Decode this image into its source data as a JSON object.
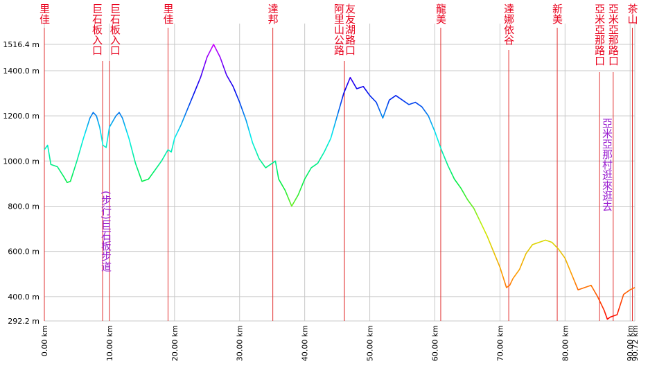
{
  "chart_data": {
    "type": "line",
    "x": [
      0,
      0.5,
      1,
      2,
      3,
      3.5,
      4,
      5,
      6,
      7,
      7.5,
      8,
      8.5,
      9,
      9.5,
      10,
      11,
      11.5,
      12,
      13,
      14,
      15,
      16,
      17,
      18,
      19,
      19.5,
      20,
      21,
      22,
      23,
      24,
      25,
      26,
      27,
      28,
      29,
      30,
      31,
      32,
      33,
      34,
      35,
      35.5,
      36,
      37,
      38,
      39,
      40,
      41,
      42,
      43,
      44,
      45,
      46,
      47,
      48,
      49,
      50,
      51,
      52,
      53,
      54,
      55,
      56,
      57,
      58,
      59,
      60,
      61,
      62,
      63,
      64,
      65,
      66,
      67,
      68,
      69,
      70,
      71,
      71.5,
      72,
      73,
      74,
      75,
      76,
      77,
      78,
      79,
      80,
      81,
      82,
      83,
      84,
      85,
      86,
      86.5,
      87,
      88,
      89,
      90,
      90.72
    ],
    "values": [
      1050,
      1070,
      985,
      975,
      930,
      905,
      910,
      1000,
      1100,
      1190,
      1215,
      1200,
      1150,
      1070,
      1060,
      1150,
      1200,
      1215,
      1190,
      1100,
      990,
      910,
      920,
      960,
      1000,
      1050,
      1040,
      1100,
      1160,
      1230,
      1300,
      1370,
      1460,
      1516.4,
      1460,
      1380,
      1330,
      1260,
      1180,
      1080,
      1010,
      970,
      990,
      1000,
      920,
      870,
      800,
      850,
      920,
      970,
      990,
      1040,
      1100,
      1200,
      1300,
      1370,
      1320,
      1330,
      1290,
      1260,
      1190,
      1270,
      1290,
      1270,
      1250,
      1260,
      1240,
      1200,
      1130,
      1050,
      980,
      920,
      880,
      830,
      790,
      730,
      670,
      600,
      530,
      440,
      450,
      480,
      520,
      590,
      630,
      640,
      650,
      640,
      610,
      570,
      500,
      430,
      440,
      450,
      400,
      340,
      300,
      310,
      320,
      410,
      430,
      440
    ],
    "line_colors": [
      "#ff0000",
      "#ff9900",
      "#ccee00",
      "#00ee44",
      "#00eeee",
      "#0000ee",
      "#cc00ff"
    ],
    "xlim": [
      0,
      90.72
    ],
    "ylim": [
      292.2,
      1516.4
    ],
    "xticks": [
      {
        "value": 0,
        "label": "0.00 km"
      },
      {
        "value": 10,
        "label": "10.00 km"
      },
      {
        "value": 20,
        "label": "20.00 km"
      },
      {
        "value": 30,
        "label": "30.00 km"
      },
      {
        "value": 40,
        "label": "40.00 km"
      },
      {
        "value": 50,
        "label": "50.00 km"
      },
      {
        "value": 60,
        "label": "60.00 km"
      },
      {
        "value": 70,
        "label": "70.00 km"
      },
      {
        "value": 80,
        "label": "80.00 km"
      },
      {
        "value": 90,
        "label": "90.00 km"
      },
      {
        "value": 90.72,
        "label": "90.72 km"
      }
    ],
    "yticks": [
      {
        "value": 292.2,
        "label": "292.2 m"
      },
      {
        "value": 400,
        "label": "400.0 m"
      },
      {
        "value": 600,
        "label": "600.0 m"
      },
      {
        "value": 800,
        "label": "800.0 m"
      },
      {
        "value": 1000,
        "label": "1000.0 m"
      },
      {
        "value": 1200,
        "label": "1200.0 m"
      },
      {
        "value": 1400,
        "label": "1400.0 m"
      },
      {
        "value": 1516.4,
        "label": "1516.4 m"
      }
    ],
    "grid": true,
    "markers": [
      {
        "km": 0,
        "label": "里佳"
      },
      {
        "km": 8.95,
        "label": "巨石板入口"
      },
      {
        "km": 10.0,
        "label": "巨石板入口"
      },
      {
        "km": 19.0,
        "label": "里佳"
      },
      {
        "km": 35.1,
        "label": "達邦"
      },
      {
        "km": 46.1,
        "label": "阿里山公路"
      },
      {
        "km": 46.1,
        "label": "友友湖路口"
      },
      {
        "km": 60.9,
        "label": "龍美"
      },
      {
        "km": 71.35,
        "label": "達娜依谷"
      },
      {
        "km": 78.8,
        "label": "新美"
      },
      {
        "km": 85.3,
        "label": "亞米亞那路口"
      },
      {
        "km": 87.4,
        "label": "亞米亞那路口"
      },
      {
        "km": 90.35,
        "label": "茶山"
      }
    ],
    "annotations": [
      "(步行)巨石板步道",
      "亞米亞那村逛來逛去"
    ]
  }
}
